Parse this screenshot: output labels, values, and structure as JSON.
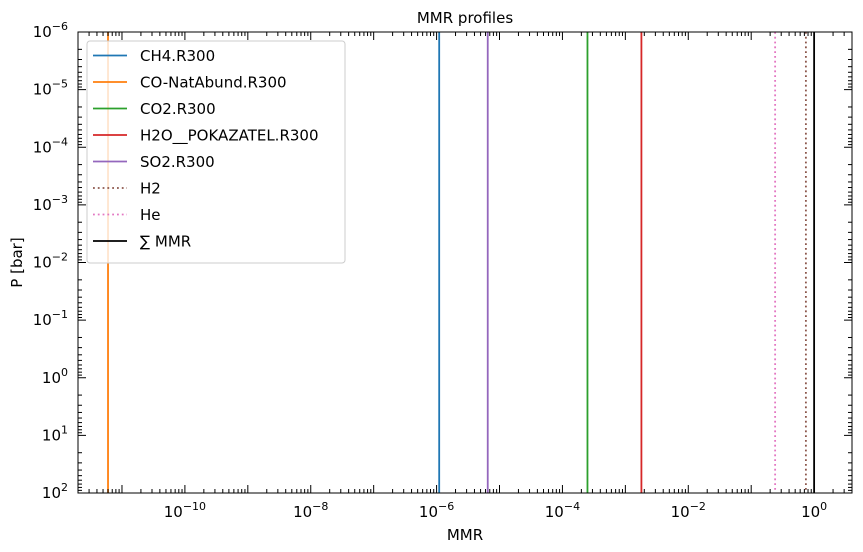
{
  "chart_data": {
    "type": "line",
    "title": "MMR profiles",
    "xlabel": "MMR",
    "ylabel": "P [bar]",
    "xscale": "log",
    "yscale": "log",
    "y_inverted": true,
    "xlim": [
      2e-12,
      4.0
    ],
    "ylim": [
      100,
      1e-06
    ],
    "x_ticks": [
      {
        "value": 1e-10,
        "base": "10",
        "exp": "−10"
      },
      {
        "value": 1e-08,
        "base": "10",
        "exp": "−8"
      },
      {
        "value": 1e-06,
        "base": "10",
        "exp": "−6"
      },
      {
        "value": 0.0001,
        "base": "10",
        "exp": "−4"
      },
      {
        "value": 0.01,
        "base": "10",
        "exp": "−2"
      },
      {
        "value": 1,
        "base": "10",
        "exp": "0"
      }
    ],
    "y_ticks": [
      {
        "value": 1e-06,
        "base": "10",
        "exp": "−6"
      },
      {
        "value": 1e-05,
        "base": "10",
        "exp": "−5"
      },
      {
        "value": 0.0001,
        "base": "10",
        "exp": "−4"
      },
      {
        "value": 0.001,
        "base": "10",
        "exp": "−3"
      },
      {
        "value": 0.01,
        "base": "10",
        "exp": "−2"
      },
      {
        "value": 0.1,
        "base": "10",
        "exp": "−1"
      },
      {
        "value": 1,
        "base": "10",
        "exp": "0"
      },
      {
        "value": 10,
        "base": "10",
        "exp": "1"
      },
      {
        "value": 100,
        "base": "10",
        "exp": "2"
      }
    ],
    "legend_position": "top-left",
    "series": [
      {
        "name": "CH4.R300",
        "mmr": 1.1e-06,
        "color": "#1f77b4",
        "style": "solid"
      },
      {
        "name": "CO-NatAbund.R300",
        "mmr": 6e-12,
        "color": "#ff7f0e",
        "style": "solid"
      },
      {
        "name": "CO2.R300",
        "mmr": 0.00025,
        "color": "#2ca02c",
        "style": "solid"
      },
      {
        "name": "H2O__POKAZATEL.R300",
        "mmr": 0.0018,
        "color": "#d62728",
        "style": "solid"
      },
      {
        "name": "SO2.R300",
        "mmr": 6.5e-06,
        "color": "#9467bd",
        "style": "solid"
      },
      {
        "name": "H2",
        "mmr": 0.74,
        "color": "#8c564b",
        "style": "dotted"
      },
      {
        "name": "He",
        "mmr": 0.24,
        "color": "#e377c2",
        "style": "dotted"
      },
      {
        "name": "∑ MMR",
        "mmr": 1.0,
        "color": "#000000",
        "style": "solid"
      }
    ]
  }
}
